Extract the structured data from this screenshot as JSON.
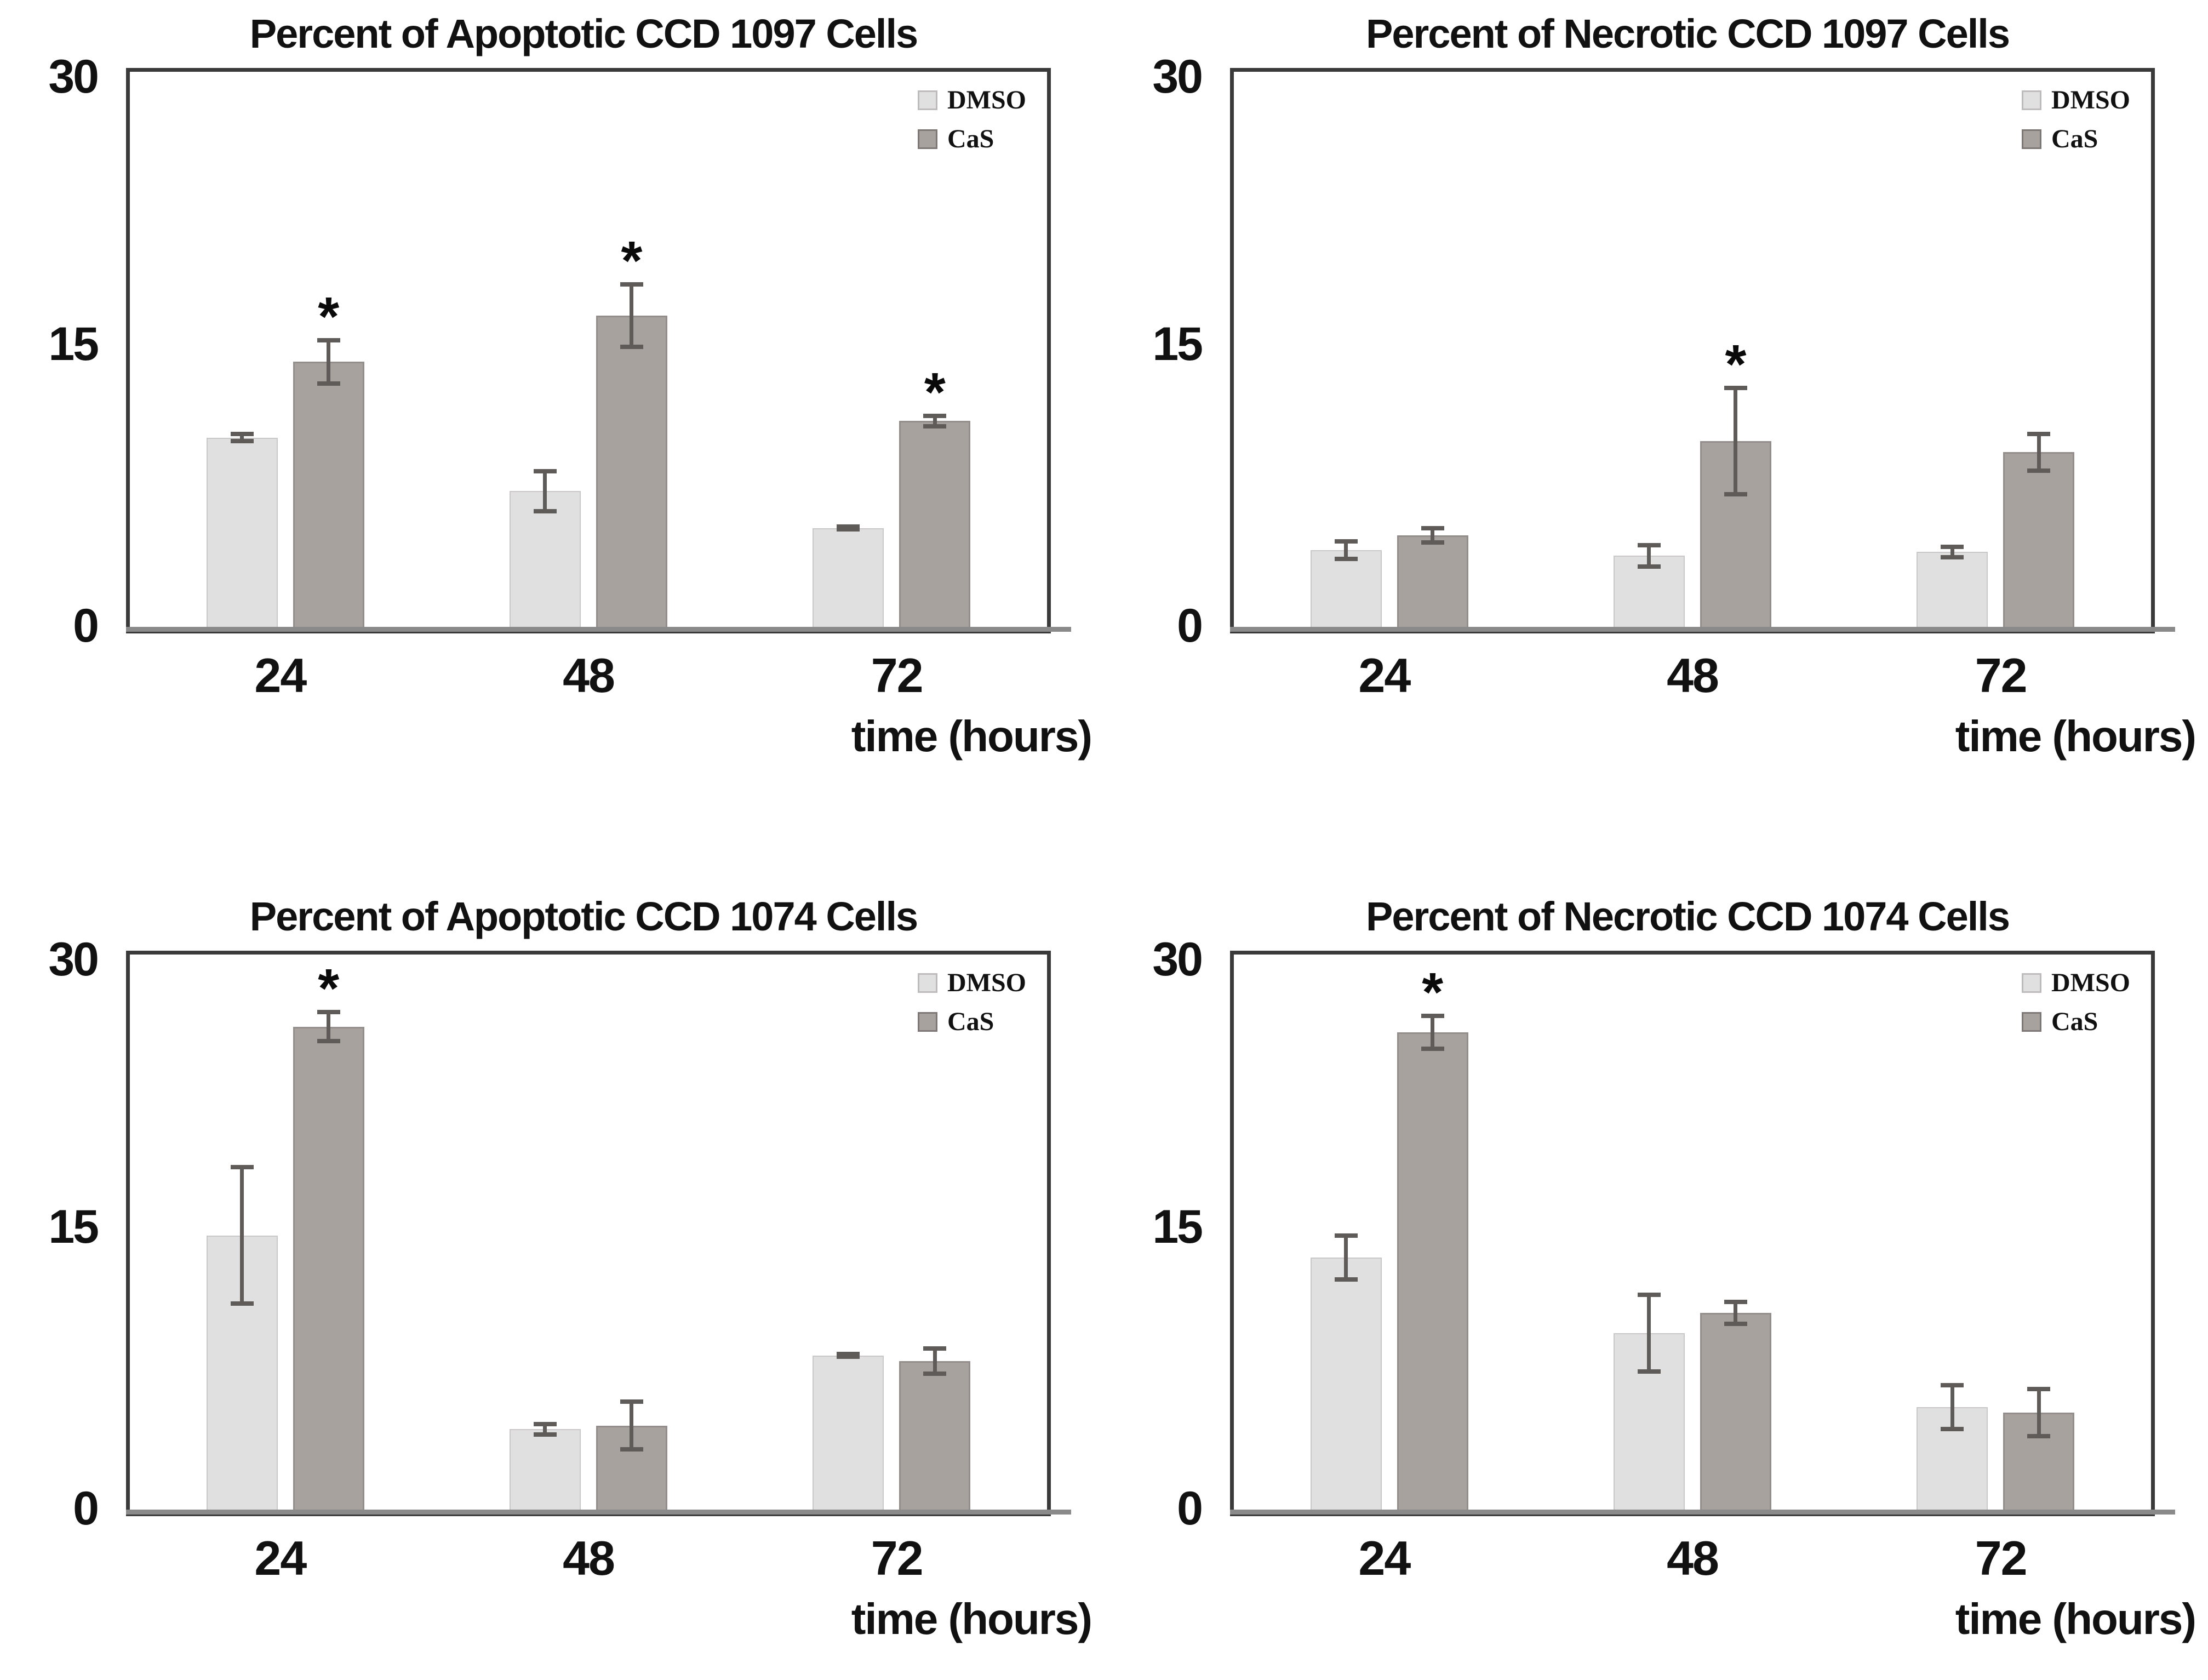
{
  "page": {
    "background": "#ffffff"
  },
  "significance_marker": "*",
  "colors": {
    "bar_dmso": "#e1e0e0",
    "bar_dmso_border": "#c9c7c7",
    "bar_cas": "#a8a29f",
    "bar_cas_border": "#938d8b",
    "error_bar": "#5f5b59",
    "frame": "#3a3a3a",
    "baseline": "#8a8a8a",
    "text": "#111111"
  },
  "chart_data": [
    {
      "type": "bar",
      "title": "Percent of Apoptotic CCD 1097 Cells",
      "xlabel": "time (hours)",
      "categories": [
        "24",
        "48",
        "72"
      ],
      "yticks": [
        "0",
        "15",
        "30"
      ],
      "ylim": [
        0,
        30
      ],
      "grid": false,
      "legend_position": "top-right",
      "series": [
        {
          "name": "DMSO",
          "values": [
            10.4,
            7.5,
            5.5
          ],
          "errors": [
            0.3,
            1.2,
            0.2
          ],
          "significant": [
            false,
            false,
            false
          ]
        },
        {
          "name": "CaS",
          "values": [
            14.5,
            17.0,
            11.3
          ],
          "errors": [
            1.3,
            1.8,
            0.4
          ],
          "significant": [
            true,
            true,
            true
          ]
        }
      ]
    },
    {
      "type": "bar",
      "title": "Percent of Necrotic CCD 1097 Cells",
      "xlabel": "time (hours)",
      "categories": [
        "24",
        "48",
        "72"
      ],
      "yticks": [
        "0",
        "15",
        "30"
      ],
      "ylim": [
        0,
        30
      ],
      "grid": false,
      "legend_position": "top-right",
      "series": [
        {
          "name": "DMSO",
          "values": [
            4.3,
            4.0,
            4.2
          ],
          "errors": [
            0.6,
            0.7,
            0.4
          ],
          "significant": [
            false,
            false,
            false
          ]
        },
        {
          "name": "CaS",
          "values": [
            5.1,
            10.2,
            9.6
          ],
          "errors": [
            0.5,
            3.0,
            1.1
          ],
          "significant": [
            false,
            true,
            false
          ]
        }
      ]
    },
    {
      "type": "bar",
      "title": "Percent of Apoptotic CCD 1074 Cells",
      "xlabel": "time (hours)",
      "categories": [
        "24",
        "48",
        "72"
      ],
      "yticks": [
        "0",
        "15",
        "30"
      ],
      "ylim": [
        0,
        30
      ],
      "grid": false,
      "legend_position": "top-right",
      "series": [
        {
          "name": "DMSO",
          "values": [
            15.0,
            4.5,
            8.5
          ],
          "errors": [
            3.8,
            0.4,
            0.2
          ],
          "significant": [
            false,
            false,
            false
          ]
        },
        {
          "name": "CaS",
          "values": [
            26.3,
            4.7,
            8.2
          ],
          "errors": [
            0.9,
            1.4,
            0.8
          ],
          "significant": [
            true,
            false,
            false
          ]
        }
      ]
    },
    {
      "type": "bar",
      "title": "Percent of Necrotic CCD 1074 Cells",
      "xlabel": "time (hours)",
      "categories": [
        "24",
        "48",
        "72"
      ],
      "yticks": [
        "0",
        "15",
        "30"
      ],
      "ylim": [
        0,
        30
      ],
      "grid": false,
      "legend_position": "top-right",
      "series": [
        {
          "name": "DMSO",
          "values": [
            13.8,
            9.7,
            5.7
          ],
          "errors": [
            1.3,
            2.2,
            1.3
          ],
          "significant": [
            false,
            false,
            false
          ]
        },
        {
          "name": "CaS",
          "values": [
            26.0,
            10.8,
            5.4
          ],
          "errors": [
            1.0,
            0.7,
            1.4
          ],
          "significant": [
            true,
            false,
            false
          ]
        }
      ]
    }
  ]
}
